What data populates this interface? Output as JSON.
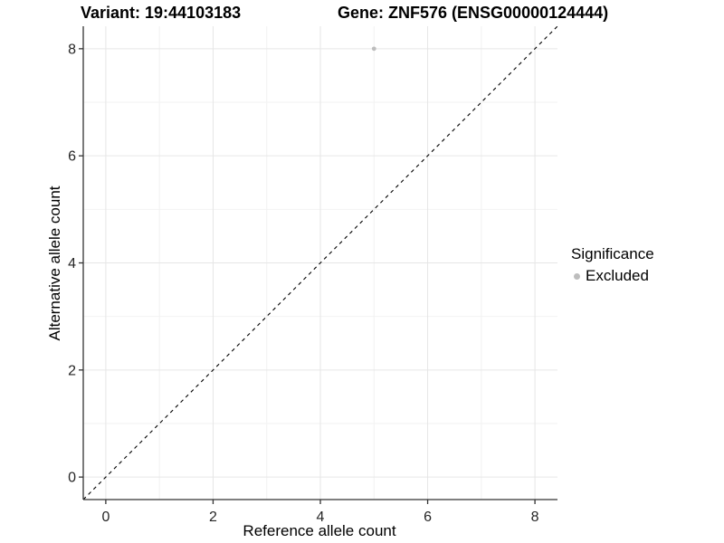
{
  "figure": {
    "title_left": "Variant: 19:44103183",
    "title_right": "Gene: ZNF576 (ENSG00000124444)"
  },
  "chart_data": {
    "type": "scatter",
    "title": "Variant: 19:44103183  /  Gene: ZNF576 (ENSG00000124444)",
    "xlabel": "Reference allele count",
    "ylabel": "Alternative allele count",
    "xlim": [
      -0.42,
      8.42
    ],
    "ylim": [
      -0.42,
      8.42
    ],
    "x_ticks": [
      0,
      2,
      4,
      6,
      8
    ],
    "y_ticks": [
      0,
      2,
      4,
      6,
      8
    ],
    "x_minor_ticks": [
      1,
      3,
      5,
      7
    ],
    "y_minor_ticks": [
      1,
      3,
      5,
      7
    ],
    "grid": true,
    "points": [
      {
        "x": 5,
        "y": 8,
        "series": "Excluded"
      }
    ],
    "reference_line": {
      "type": "identity",
      "style": "dashed",
      "from": [
        -0.42,
        -0.42
      ],
      "to": [
        8.42,
        8.42
      ]
    },
    "series": [
      {
        "name": "Excluded",
        "color": "#bdbdbd"
      }
    ],
    "legend": {
      "title": "Significance",
      "position": "right",
      "items": [
        {
          "label": "Excluded",
          "color": "#bdbdbd"
        }
      ]
    }
  },
  "colors": {
    "point": "#bdbdbd",
    "grid_major": "#e6e6e6",
    "grid_minor": "#f2f2f2",
    "axis_line": "#333333",
    "tick_label": "#262626",
    "reference_line": "#000000",
    "background": "#ffffff"
  }
}
